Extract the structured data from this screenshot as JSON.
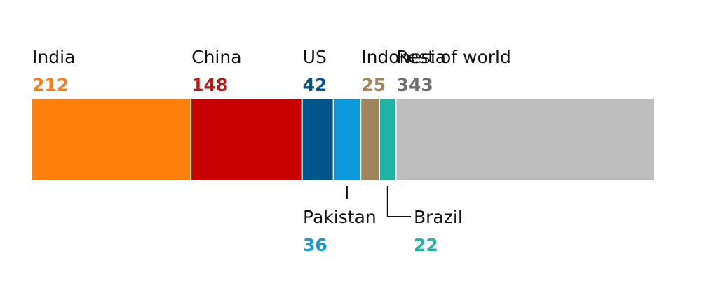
{
  "chart_data": {
    "type": "bar",
    "orientation": "horizontal-stacked",
    "title": "",
    "segments": [
      {
        "label": "India",
        "value": 212,
        "value_text": "212",
        "color": "#ff7f0f",
        "value_color": "#f57c1f",
        "label_position": "above"
      },
      {
        "label": "China",
        "value": 148,
        "value_text": "148",
        "color": "#c70000",
        "value_color": "#b31b1b",
        "label_position": "above"
      },
      {
        "label": "US",
        "value": 42,
        "value_text": "42",
        "color": "#005689",
        "value_color": "#005689",
        "label_position": "above"
      },
      {
        "label": "Pakistan",
        "value": 36,
        "value_text": "36",
        "color": "#0d97dc",
        "value_color": "#1a9ad8",
        "label_position": "below"
      },
      {
        "label": "Indonesia",
        "value": 25,
        "value_text": "25",
        "color": "#a1845c",
        "value_color": "#a1845c",
        "label_position": "above"
      },
      {
        "label": "Brazil",
        "value": 22,
        "value_text": "22",
        "color": "#20b2a5",
        "value_color": "#27b3a6",
        "label_position": "below"
      },
      {
        "label": "Rest of world",
        "value": 343,
        "value_text": "343",
        "color": "#bdbdbd",
        "value_color": "#6e6e6e",
        "label_position": "above"
      }
    ]
  }
}
